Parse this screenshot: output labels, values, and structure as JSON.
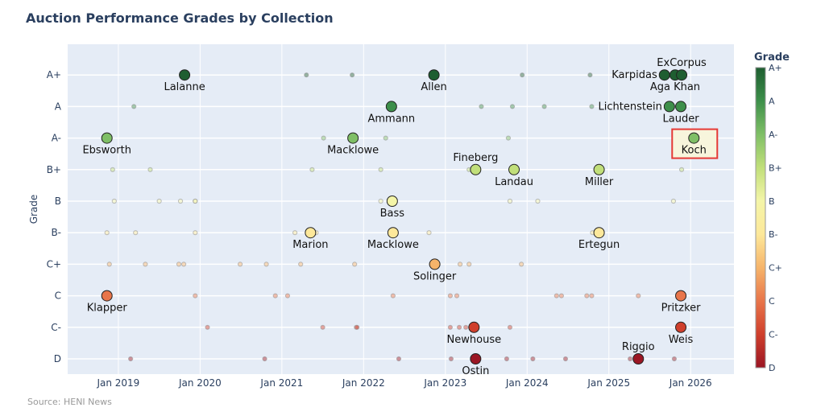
{
  "chart_data": {
    "type": "scatter",
    "title": "Auction Performance Grades by Collection",
    "xlabel": "",
    "ylabel": "Grade",
    "xlim": [
      2018.38,
      2026.53
    ],
    "x_ticks": [
      {
        "v": 2019,
        "label": "Jan 2019"
      },
      {
        "v": 2020,
        "label": "Jan 2020"
      },
      {
        "v": 2021,
        "label": "Jan 2021"
      },
      {
        "v": 2022,
        "label": "Jan 2022"
      },
      {
        "v": 2023,
        "label": "Jan 2023"
      },
      {
        "v": 2024,
        "label": "Jan 2024"
      },
      {
        "v": 2025,
        "label": "Jan 2025"
      },
      {
        "v": 2026,
        "label": "Jan 2026"
      }
    ],
    "grades": [
      "D",
      "C-",
      "C",
      "C+",
      "B-",
      "B",
      "B+",
      "A-",
      "A",
      "A+"
    ],
    "grade_colors": {
      "D": "#9b1624",
      "C-": "#cf3f2c",
      "C": "#e8754a",
      "C+": "#f6b46a",
      "B-": "#fde89a",
      "B": "#f4f5a8",
      "B+": "#c1df7a",
      "A-": "#7fbf66",
      "A": "#3d8f4a",
      "A+": "#1e5e31"
    },
    "colorbar": {
      "title": "Grade",
      "ticks": [
        "D",
        "C-",
        "C",
        "C+",
        "B-",
        "B",
        "B+",
        "A-",
        "A",
        "A+"
      ]
    },
    "grid": true,
    "highlight": "Koch",
    "highlight_color": "#e53935",
    "labeled": [
      {
        "name": "Ebsworth",
        "x": 2018.86,
        "grade": "A-",
        "pos": "bottom"
      },
      {
        "name": "Lalanne",
        "x": 2019.81,
        "grade": "A+",
        "pos": "bottom"
      },
      {
        "name": "Klapper",
        "x": 2018.86,
        "grade": "C",
        "pos": "bottom"
      },
      {
        "name": "Marion",
        "x": 2021.35,
        "grade": "B-",
        "pos": "bottom"
      },
      {
        "name": "Macklowe",
        "x": 2021.87,
        "grade": "A-",
        "pos": "bottom"
      },
      {
        "name": "Ammann",
        "x": 2022.34,
        "grade": "A",
        "pos": "bottom"
      },
      {
        "name": "Bass",
        "x": 2022.35,
        "grade": "B",
        "pos": "bottom"
      },
      {
        "name": "Macklowe",
        "x": 2022.36,
        "grade": "B-",
        "pos": "bottom"
      },
      {
        "name": "Allen",
        "x": 2022.86,
        "grade": "A+",
        "pos": "bottom"
      },
      {
        "name": "Solinger",
        "x": 2022.87,
        "grade": "C+",
        "pos": "bottom"
      },
      {
        "name": "Fineberg",
        "x": 2023.37,
        "grade": "B+",
        "pos": "top"
      },
      {
        "name": "Newhouse",
        "x": 2023.35,
        "grade": "C-",
        "pos": "bottom"
      },
      {
        "name": "Ostin",
        "x": 2023.37,
        "grade": "D",
        "pos": "bottom"
      },
      {
        "name": "Landau",
        "x": 2023.84,
        "grade": "B+",
        "pos": "bottom"
      },
      {
        "name": "Miller",
        "x": 2024.88,
        "grade": "B+",
        "pos": "bottom"
      },
      {
        "name": "Ertegun",
        "x": 2024.88,
        "grade": "B-",
        "pos": "bottom"
      },
      {
        "name": "Riggio",
        "x": 2025.36,
        "grade": "D",
        "pos": "top"
      },
      {
        "name": "Karpidas",
        "x": 2025.68,
        "grade": "A+",
        "pos": "left"
      },
      {
        "name": "Aga Khan",
        "x": 2025.81,
        "grade": "A+",
        "pos": "bottom"
      },
      {
        "name": "ExCorpus",
        "x": 2025.89,
        "grade": "A+",
        "pos": "top"
      },
      {
        "name": "Lichtenstein",
        "x": 2025.74,
        "grade": "A",
        "pos": "left"
      },
      {
        "name": "Lauder",
        "x": 2025.88,
        "grade": "A",
        "pos": "bottom"
      },
      {
        "name": "Pritzker",
        "x": 2025.88,
        "grade": "C",
        "pos": "bottom"
      },
      {
        "name": "Weis",
        "x": 2025.88,
        "grade": "C-",
        "pos": "bottom"
      },
      {
        "name": "Koch",
        "x": 2026.04,
        "grade": "A-",
        "pos": "bottom"
      }
    ],
    "background_points": {
      "A+": [
        2021.3,
        2021.86,
        2023.94,
        2024.77
      ],
      "A": [
        2019.19,
        2023.44,
        2023.82,
        2024.21,
        2024.79
      ],
      "A-": [
        2021.51,
        2022.27,
        2023.77
      ],
      "B+": [
        2018.93,
        2019.39,
        2021.37,
        2022.21,
        2023.29,
        2025.89
      ],
      "B": [
        2018.95,
        2019.5,
        2019.76,
        2019.94,
        2019.94,
        2022.21,
        2023.79,
        2024.13,
        2025.79
      ],
      "B-": [
        2018.86,
        2019.21,
        2019.94,
        2021.16,
        2021.42,
        2022.8,
        2024.8
      ],
      "C+": [
        2018.89,
        2019.33,
        2019.74,
        2019.8,
        2020.49,
        2020.81,
        2021.23,
        2021.89,
        2022.83,
        2023.18,
        2023.29,
        2023.93
      ],
      "C": [
        2019.94,
        2020.92,
        2021.07,
        2022.36,
        2023.06,
        2023.14,
        2024.36,
        2024.42,
        2024.73,
        2024.79,
        2025.36
      ],
      "C-": [
        2020.09,
        2021.5,
        2021.91,
        2021.92,
        2023.06,
        2023.17,
        2023.25,
        2023.79
      ],
      "D": [
        2019.15,
        2020.79,
        2022.43,
        2023.07,
        2023.75,
        2024.07,
        2024.47,
        2025.26,
        2025.8
      ]
    },
    "source": "Source: HENI News"
  }
}
